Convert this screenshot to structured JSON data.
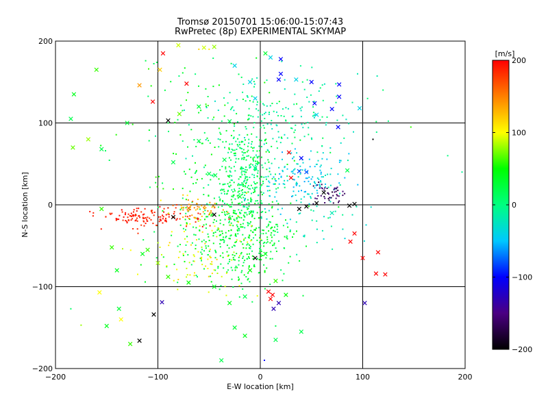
{
  "chart_data": {
    "type": "scatter",
    "title": "Tromsø 20150701 15:06:00-15:07:43",
    "subtitle": "RwPretec (8p) EXPERIMENTAL SKYMAP",
    "xlabel": "E-W location [km]",
    "ylabel": "N-S location [km]",
    "xlim": [
      -200,
      200
    ],
    "ylim": [
      -200,
      200
    ],
    "xticks": [
      -200,
      -100,
      0,
      100,
      200
    ],
    "yticks": [
      -200,
      -100,
      0,
      100,
      200
    ],
    "xtick_labels": [
      "−200",
      "−100",
      "0",
      "100",
      "200"
    ],
    "ytick_labels": [
      "−200",
      "−100",
      "0",
      "100",
      "200"
    ],
    "grid_lines": [
      -100,
      0,
      100
    ],
    "grid": true,
    "colorbar": {
      "label": "[m/s]",
      "min": -200,
      "max": 200,
      "ticks": [
        200,
        100,
        0,
        -100,
        -200
      ],
      "tick_labels": [
        "200",
        "100",
        "0",
        "−100",
        "−200"
      ],
      "colors": [
        "#000000",
        "#4b0082",
        "#0000ff",
        "#00c8ff",
        "#00ff80",
        "#00ff00",
        "#ffff00",
        "#ff8000",
        "#ff0000"
      ]
    },
    "marker_types": [
      "dot",
      "cross"
    ],
    "clusters": [
      {
        "center": [
          -15,
          30
        ],
        "spread": [
          14,
          32
        ],
        "count": 320,
        "velocity": [
          -15,
          40
        ]
      },
      {
        "center": [
          -22,
          -40
        ],
        "spread": [
          28,
          30
        ],
        "count": 420,
        "velocity": [
          10,
          50
        ]
      },
      {
        "center": [
          15,
          110
        ],
        "spread": [
          40,
          25
        ],
        "count": 160,
        "velocity": [
          -30,
          10
        ]
      },
      {
        "center": [
          -40,
          70
        ],
        "spread": [
          45,
          55
        ],
        "count": 160,
        "velocity": [
          0,
          60
        ]
      },
      {
        "center": [
          38,
          30
        ],
        "spread": [
          20,
          20
        ],
        "count": 150,
        "velocity": [
          -60,
          -20
        ]
      },
      {
        "center": [
          -110,
          -15
        ],
        "spread": [
          28,
          6
        ],
        "count": 130,
        "velocity": [
          180,
          200
        ]
      },
      {
        "center": [
          -62,
          -5
        ],
        "spread": [
          12,
          6
        ],
        "count": 50,
        "velocity": [
          120,
          160
        ]
      },
      {
        "center": [
          65,
          15
        ],
        "spread": [
          10,
          8
        ],
        "count": 45,
        "velocity": [
          -180,
          -150
        ]
      },
      {
        "center": [
          -55,
          -60
        ],
        "spread": [
          30,
          30
        ],
        "count": 90,
        "velocity": [
          80,
          120
        ]
      },
      {
        "center": [
          60,
          -20
        ],
        "spread": [
          25,
          25
        ],
        "count": 40,
        "velocity": [
          -40,
          0
        ]
      }
    ],
    "crosses": [
      [
        -95,
        185,
        200
      ],
      [
        -72,
        148,
        200
      ],
      [
        -105,
        126,
        200
      ],
      [
        -118,
        146,
        140
      ],
      [
        -98,
        165,
        120
      ],
      [
        -55,
        192,
        90
      ],
      [
        -45,
        193,
        80
      ],
      [
        -80,
        195,
        90
      ],
      [
        -183,
        70,
        70
      ],
      [
        -168,
        80,
        80
      ],
      [
        -155,
        -5,
        60
      ],
      [
        -160,
        165,
        60
      ],
      [
        -182,
        135,
        40
      ],
      [
        -185,
        105,
        20
      ],
      [
        -155,
        68,
        20
      ],
      [
        -138,
        -127,
        30
      ],
      [
        -136,
        -140,
        100
      ],
      [
        -127,
        -170,
        60
      ],
      [
        -157,
        -107,
        100
      ],
      [
        -150,
        -148,
        40
      ],
      [
        -104,
        -134,
        -200
      ],
      [
        -118,
        -166,
        -200
      ],
      [
        -96,
        -119,
        -130
      ],
      [
        -110,
        -55,
        60
      ],
      [
        -100,
        -71,
        80
      ],
      [
        -145,
        -52,
        60
      ],
      [
        -140,
        -80,
        40
      ],
      [
        -115,
        -60,
        40
      ],
      [
        -90,
        -88,
        60
      ],
      [
        -90,
        103,
        -200
      ],
      [
        -38,
        -190,
        20
      ],
      [
        -25,
        -150,
        30
      ],
      [
        -15,
        -112,
        20
      ],
      [
        15,
        -93,
        60
      ],
      [
        -5,
        -65,
        -200
      ],
      [
        12,
        -110,
        200
      ],
      [
        8,
        -106,
        200
      ],
      [
        10,
        -115,
        200
      ],
      [
        18,
        -120,
        -130
      ],
      [
        13,
        -127,
        -130
      ],
      [
        102,
        -120,
        -130
      ],
      [
        88,
        -45,
        200
      ],
      [
        100,
        -65,
        200
      ],
      [
        115,
        -58,
        200
      ],
      [
        113,
        -84,
        200
      ],
      [
        122,
        -85,
        200
      ],
      [
        92,
        -35,
        200
      ],
      [
        92,
        1,
        -200
      ],
      [
        87,
        -1,
        -200
      ],
      [
        62,
        15,
        -200
      ],
      [
        45,
        -2,
        -200
      ],
      [
        38,
        -5,
        -200
      ],
      [
        55,
        2,
        -200
      ],
      [
        -85,
        -15,
        -200
      ],
      [
        -45,
        -12,
        -200
      ],
      [
        -70,
        -4,
        160
      ],
      [
        -85,
        52,
        20
      ],
      [
        -44,
        36,
        20
      ],
      [
        -60,
        78,
        20
      ],
      [
        -79,
        111,
        70
      ],
      [
        18,
        153,
        -100
      ],
      [
        20,
        160,
        -100
      ],
      [
        20,
        178,
        -100
      ],
      [
        50,
        150,
        -100
      ],
      [
        53,
        124,
        -100
      ],
      [
        77,
        147,
        -100
      ],
      [
        70,
        117,
        -100
      ],
      [
        76,
        95,
        -100
      ],
      [
        77,
        132,
        -100
      ],
      [
        55,
        110,
        -40
      ],
      [
        35,
        153,
        -40
      ],
      [
        10,
        180,
        -40
      ],
      [
        -5,
        130,
        -40
      ],
      [
        -10,
        150,
        -40
      ],
      [
        -25,
        170,
        -40
      ],
      [
        40,
        57,
        -100
      ],
      [
        45,
        40,
        -80
      ],
      [
        38,
        41,
        -80
      ],
      [
        28,
        64,
        200
      ],
      [
        30,
        33,
        200
      ],
      [
        97,
        118,
        -40
      ],
      [
        85,
        42,
        20
      ],
      [
        -30,
        102,
        20
      ],
      [
        -35,
        55,
        20
      ],
      [
        -50,
        38,
        20
      ],
      [
        5,
        185,
        30
      ],
      [
        -60,
        120,
        30
      ],
      [
        -130,
        100,
        30
      ],
      [
        -20,
        10,
        30
      ],
      [
        -5,
        45,
        0
      ],
      [
        5,
        -60,
        40
      ],
      [
        -10,
        -80,
        50
      ],
      [
        -30,
        -120,
        40
      ],
      [
        -45,
        -100,
        40
      ],
      [
        25,
        -110,
        50
      ],
      [
        70,
        -10,
        -20
      ],
      [
        -70,
        -95,
        50
      ],
      [
        40,
        -155,
        20
      ],
      [
        15,
        -165,
        20
      ],
      [
        -15,
        -160,
        40
      ]
    ],
    "markers": [
      [
        -60,
        190,
        120
      ],
      [
        -50,
        190,
        110
      ],
      [
        -112,
        176,
        20
      ],
      [
        -109,
        166,
        60
      ],
      [
        -101,
        174,
        20
      ],
      [
        95,
        160,
        -20
      ],
      [
        90,
        125,
        -10
      ],
      [
        110,
        80,
        -200
      ],
      [
        147,
        95,
        60
      ],
      [
        183,
        60,
        0
      ],
      [
        197,
        40,
        -10
      ],
      [
        -185,
        -127,
        10
      ],
      [
        -175,
        -147,
        80
      ],
      [
        15,
        -148,
        20
      ],
      [
        4,
        -190,
        -100
      ]
    ]
  }
}
